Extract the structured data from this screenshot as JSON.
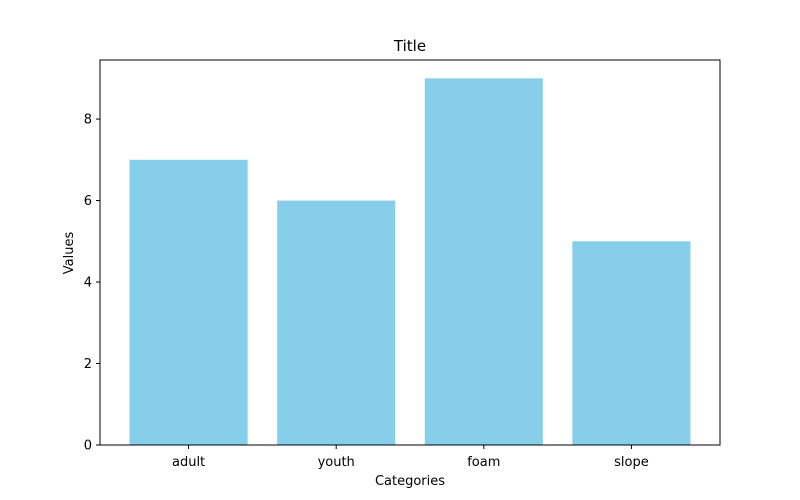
{
  "chart_data": {
    "type": "bar",
    "title": "Title",
    "xlabel": "Categories",
    "ylabel": "Values",
    "categories": [
      "adult",
      "youth",
      "foam",
      "slope"
    ],
    "values": [
      7,
      6,
      9,
      5
    ],
    "ylim": [
      0,
      9.45
    ],
    "yticks": [
      0,
      2,
      4,
      6,
      8
    ],
    "bar_color": "#87CEEB",
    "axis_color": "#000000",
    "grid": false,
    "legend": "none"
  }
}
